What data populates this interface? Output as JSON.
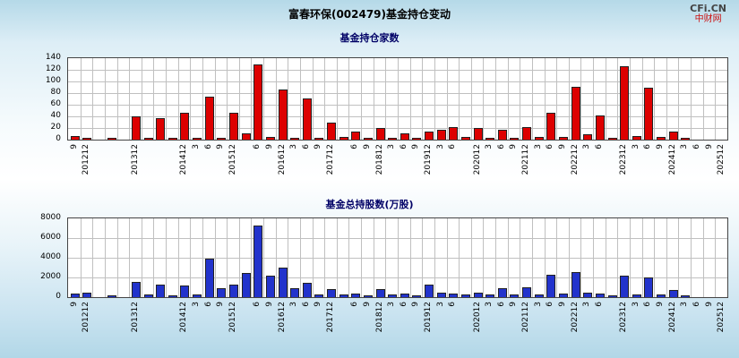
{
  "header": {
    "title": "富春环保(002479)基金持仓变动",
    "logo_line1": "CFi.CN",
    "logo_line2": "中财网"
  },
  "colors": {
    "bar_red": "#dd0000",
    "bar_blue": "#2233cc",
    "bar_edge": "#222222",
    "grid": "#c0c0c0",
    "plot_border": "#444444",
    "subtitle_text": "#000066",
    "logo_red": "#cc1111"
  },
  "chart_data": [
    {
      "type": "bar",
      "title": "基金持仓家数",
      "xlabel": "",
      "ylabel": "",
      "ylim": [
        0,
        140
      ],
      "yticks": [
        0,
        20,
        40,
        60,
        80,
        100,
        120,
        140
      ],
      "grid": true,
      "legend": "none",
      "tick_label_rotation": 90,
      "bar_color": "#dd0000",
      "bar_edge": "#222222",
      "categories": [
        "2012-09",
        "2012-12",
        "2013-03",
        "2013-06",
        "2013-09",
        "2013-12",
        "2014-03",
        "2014-06",
        "2014-09",
        "2014-12",
        "2015-03",
        "2015-06",
        "2015-09",
        "2015-12",
        "2016-03",
        "2016-06",
        "2016-09",
        "2016-12",
        "2017-03",
        "2017-06",
        "2017-09",
        "2017-12",
        "2018-03",
        "2018-06",
        "2018-09",
        "2018-12",
        "2019-03",
        "2019-06",
        "2019-09",
        "2019-12",
        "2020-03",
        "2020-06",
        "2020-09",
        "2020-12",
        "2021-03",
        "2021-06",
        "2021-09",
        "2021-12",
        "2022-03",
        "2022-06",
        "2022-09",
        "2022-12",
        "2023-03",
        "2023-06",
        "2023-09",
        "2023-12",
        "2024-03",
        "2024-06",
        "2024-09",
        "2024-12",
        "2025-03",
        "2025-06",
        "2025-09",
        "2025-12"
      ],
      "tick_labels": [
        "9",
        "201212",
        "",
        "",
        "",
        "201312",
        "",
        "",
        "",
        "201412",
        "3",
        "6",
        "9",
        "201512",
        "",
        "6",
        "9",
        "201612",
        "3",
        "6",
        "9",
        "201712",
        "",
        "6",
        "9",
        "201812",
        "3",
        "6",
        "9",
        "201912",
        "3",
        "6",
        "",
        "202012",
        "3",
        "6",
        "9",
        "202112",
        "3",
        "6",
        "9",
        "202212",
        "3",
        "6",
        "",
        "202312",
        "3",
        "6",
        "9",
        "202412",
        "3",
        "6",
        "9",
        "202512"
      ],
      "values": [
        5,
        2,
        0,
        1,
        0,
        38,
        2,
        35,
        1,
        44,
        2,
        73,
        2,
        45,
        10,
        128,
        3,
        84,
        2,
        70,
        2,
        28,
        3,
        12,
        1,
        18,
        2,
        10,
        2,
        12,
        15,
        20,
        3,
        18,
        2,
        15,
        2,
        20,
        3,
        45,
        3,
        90,
        8,
        40,
        2,
        125,
        5,
        88,
        3,
        12,
        2,
        0,
        0,
        0
      ]
    },
    {
      "type": "bar",
      "title": "基金总持股数(万股)",
      "xlabel": "",
      "ylabel": "",
      "ylim": [
        0,
        8000
      ],
      "yticks": [
        0,
        2000,
        4000,
        6000,
        8000
      ],
      "grid": true,
      "legend": "none",
      "tick_label_rotation": 90,
      "bar_color": "#2233cc",
      "bar_edge": "#222222",
      "categories": [
        "2012-09",
        "2012-12",
        "2013-03",
        "2013-06",
        "2013-09",
        "2013-12",
        "2014-03",
        "2014-06",
        "2014-09",
        "2014-12",
        "2015-03",
        "2015-06",
        "2015-09",
        "2015-12",
        "2016-03",
        "2016-06",
        "2016-09",
        "2016-12",
        "2017-03",
        "2017-06",
        "2017-09",
        "2017-12",
        "2018-03",
        "2018-06",
        "2018-09",
        "2018-12",
        "2019-03",
        "2019-06",
        "2019-09",
        "2019-12",
        "2020-03",
        "2020-06",
        "2020-09",
        "2020-12",
        "2021-03",
        "2021-06",
        "2021-09",
        "2021-12",
        "2022-03",
        "2022-06",
        "2022-09",
        "2022-12",
        "2023-03",
        "2023-06",
        "2023-09",
        "2023-12",
        "2024-03",
        "2024-06",
        "2024-09",
        "2024-12",
        "2025-03",
        "2025-06",
        "2025-09",
        "2025-12"
      ],
      "tick_labels": [
        "9",
        "201212",
        "",
        "",
        "",
        "201312",
        "",
        "",
        "",
        "201412",
        "3",
        "6",
        "9",
        "201512",
        "",
        "6",
        "9",
        "201612",
        "3",
        "6",
        "9",
        "201712",
        "",
        "6",
        "9",
        "201812",
        "3",
        "6",
        "9",
        "201912",
        "3",
        "6",
        "",
        "202012",
        "3",
        "6",
        "9",
        "202112",
        "3",
        "6",
        "9",
        "202212",
        "3",
        "6",
        "",
        "202312",
        "3",
        "6",
        "9",
        "202412",
        "3",
        "6",
        "9",
        "202512"
      ],
      "values": [
        300,
        400,
        0,
        100,
        0,
        1500,
        200,
        1200,
        100,
        1100,
        200,
        3800,
        800,
        1200,
        2400,
        7200,
        2100,
        2900,
        800,
        1400,
        200,
        700,
        150,
        300,
        100,
        700,
        150,
        300,
        100,
        1200,
        400,
        300,
        150,
        400,
        150,
        800,
        150,
        900,
        200,
        2200,
        300,
        2500,
        400,
        300,
        100,
        2100,
        200,
        1900,
        150,
        600,
        100,
        0,
        0,
        0
      ]
    }
  ]
}
